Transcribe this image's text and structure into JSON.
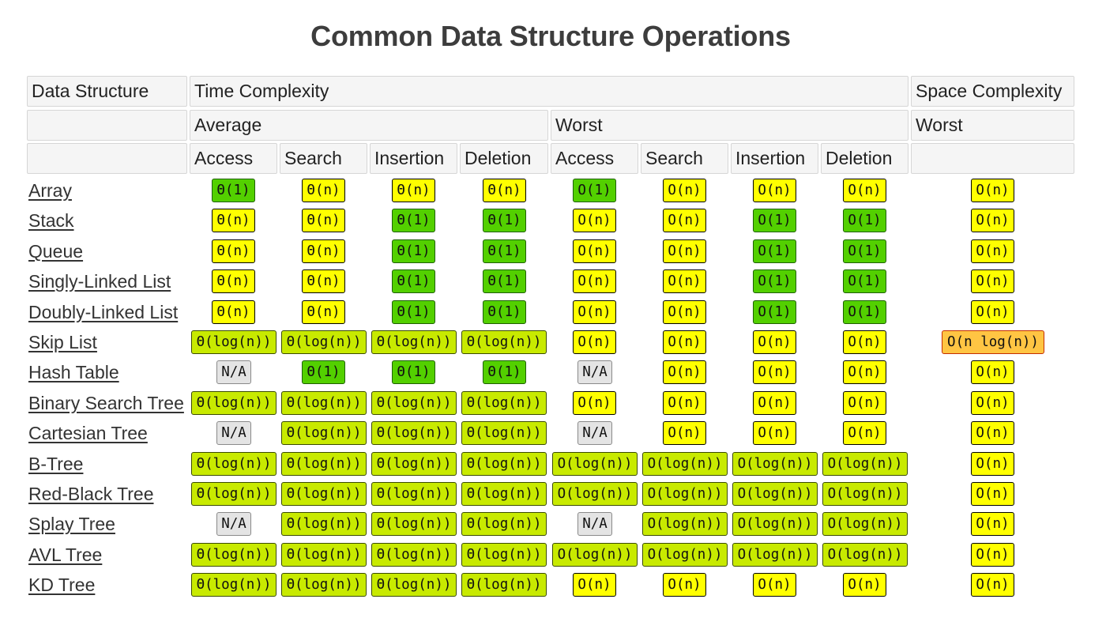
{
  "title": "Common Data Structure Operations",
  "header": {
    "data_structure": "Data Structure",
    "time_complexity": "Time Complexity",
    "space_complexity": "Space Complexity",
    "average": "Average",
    "worst": "Worst",
    "space_worst": "Worst",
    "columns": [
      "Access",
      "Search",
      "Insertion",
      "Deletion",
      "Access",
      "Search",
      "Insertion",
      "Deletion"
    ]
  },
  "colors": {
    "yellow": "#ffff00",
    "green": "#53d000",
    "lime": "#c8ea00",
    "orange": "#ffc543",
    "na": "#e4e4e4"
  },
  "rows": [
    {
      "name": "Array",
      "cells": [
        [
          "Θ(1)",
          "green"
        ],
        [
          "Θ(n)",
          "yellow"
        ],
        [
          "Θ(n)",
          "yellow"
        ],
        [
          "Θ(n)",
          "yellow"
        ],
        [
          "O(1)",
          "green"
        ],
        [
          "O(n)",
          "yellow"
        ],
        [
          "O(n)",
          "yellow"
        ],
        [
          "O(n)",
          "yellow"
        ],
        [
          "O(n)",
          "yellow"
        ]
      ]
    },
    {
      "name": "Stack",
      "cells": [
        [
          "Θ(n)",
          "yellow"
        ],
        [
          "Θ(n)",
          "yellow"
        ],
        [
          "Θ(1)",
          "green"
        ],
        [
          "Θ(1)",
          "green"
        ],
        [
          "O(n)",
          "yellow"
        ],
        [
          "O(n)",
          "yellow"
        ],
        [
          "O(1)",
          "green"
        ],
        [
          "O(1)",
          "green"
        ],
        [
          "O(n)",
          "yellow"
        ]
      ]
    },
    {
      "name": "Queue",
      "cells": [
        [
          "Θ(n)",
          "yellow"
        ],
        [
          "Θ(n)",
          "yellow"
        ],
        [
          "Θ(1)",
          "green"
        ],
        [
          "Θ(1)",
          "green"
        ],
        [
          "O(n)",
          "yellow"
        ],
        [
          "O(n)",
          "yellow"
        ],
        [
          "O(1)",
          "green"
        ],
        [
          "O(1)",
          "green"
        ],
        [
          "O(n)",
          "yellow"
        ]
      ]
    },
    {
      "name": "Singly-Linked List",
      "cells": [
        [
          "Θ(n)",
          "yellow"
        ],
        [
          "Θ(n)",
          "yellow"
        ],
        [
          "Θ(1)",
          "green"
        ],
        [
          "Θ(1)",
          "green"
        ],
        [
          "O(n)",
          "yellow"
        ],
        [
          "O(n)",
          "yellow"
        ],
        [
          "O(1)",
          "green"
        ],
        [
          "O(1)",
          "green"
        ],
        [
          "O(n)",
          "yellow"
        ]
      ]
    },
    {
      "name": "Doubly-Linked List",
      "cells": [
        [
          "Θ(n)",
          "yellow"
        ],
        [
          "Θ(n)",
          "yellow"
        ],
        [
          "Θ(1)",
          "green"
        ],
        [
          "Θ(1)",
          "green"
        ],
        [
          "O(n)",
          "yellow"
        ],
        [
          "O(n)",
          "yellow"
        ],
        [
          "O(1)",
          "green"
        ],
        [
          "O(1)",
          "green"
        ],
        [
          "O(n)",
          "yellow"
        ]
      ]
    },
    {
      "name": "Skip List",
      "cells": [
        [
          "Θ(log(n))",
          "lime"
        ],
        [
          "Θ(log(n))",
          "lime"
        ],
        [
          "Θ(log(n))",
          "lime"
        ],
        [
          "Θ(log(n))",
          "lime"
        ],
        [
          "O(n)",
          "yellow"
        ],
        [
          "O(n)",
          "yellow"
        ],
        [
          "O(n)",
          "yellow"
        ],
        [
          "O(n)",
          "yellow"
        ],
        [
          "O(n log(n))",
          "orange"
        ]
      ]
    },
    {
      "name": "Hash Table",
      "cells": [
        [
          "N/A",
          "na"
        ],
        [
          "Θ(1)",
          "green"
        ],
        [
          "Θ(1)",
          "green"
        ],
        [
          "Θ(1)",
          "green"
        ],
        [
          "N/A",
          "na"
        ],
        [
          "O(n)",
          "yellow"
        ],
        [
          "O(n)",
          "yellow"
        ],
        [
          "O(n)",
          "yellow"
        ],
        [
          "O(n)",
          "yellow"
        ]
      ]
    },
    {
      "name": "Binary Search Tree",
      "cells": [
        [
          "Θ(log(n))",
          "lime"
        ],
        [
          "Θ(log(n))",
          "lime"
        ],
        [
          "Θ(log(n))",
          "lime"
        ],
        [
          "Θ(log(n))",
          "lime"
        ],
        [
          "O(n)",
          "yellow"
        ],
        [
          "O(n)",
          "yellow"
        ],
        [
          "O(n)",
          "yellow"
        ],
        [
          "O(n)",
          "yellow"
        ],
        [
          "O(n)",
          "yellow"
        ]
      ]
    },
    {
      "name": "Cartesian Tree",
      "cells": [
        [
          "N/A",
          "na"
        ],
        [
          "Θ(log(n))",
          "lime"
        ],
        [
          "Θ(log(n))",
          "lime"
        ],
        [
          "Θ(log(n))",
          "lime"
        ],
        [
          "N/A",
          "na"
        ],
        [
          "O(n)",
          "yellow"
        ],
        [
          "O(n)",
          "yellow"
        ],
        [
          "O(n)",
          "yellow"
        ],
        [
          "O(n)",
          "yellow"
        ]
      ]
    },
    {
      "name": "B-Tree",
      "cells": [
        [
          "Θ(log(n))",
          "lime"
        ],
        [
          "Θ(log(n))",
          "lime"
        ],
        [
          "Θ(log(n))",
          "lime"
        ],
        [
          "Θ(log(n))",
          "lime"
        ],
        [
          "O(log(n))",
          "lime"
        ],
        [
          "O(log(n))",
          "lime"
        ],
        [
          "O(log(n))",
          "lime"
        ],
        [
          "O(log(n))",
          "lime"
        ],
        [
          "O(n)",
          "yellow"
        ]
      ]
    },
    {
      "name": "Red-Black Tree",
      "cells": [
        [
          "Θ(log(n))",
          "lime"
        ],
        [
          "Θ(log(n))",
          "lime"
        ],
        [
          "Θ(log(n))",
          "lime"
        ],
        [
          "Θ(log(n))",
          "lime"
        ],
        [
          "O(log(n))",
          "lime"
        ],
        [
          "O(log(n))",
          "lime"
        ],
        [
          "O(log(n))",
          "lime"
        ],
        [
          "O(log(n))",
          "lime"
        ],
        [
          "O(n)",
          "yellow"
        ]
      ]
    },
    {
      "name": "Splay Tree",
      "cells": [
        [
          "N/A",
          "na"
        ],
        [
          "Θ(log(n))",
          "lime"
        ],
        [
          "Θ(log(n))",
          "lime"
        ],
        [
          "Θ(log(n))",
          "lime"
        ],
        [
          "N/A",
          "na"
        ],
        [
          "O(log(n))",
          "lime"
        ],
        [
          "O(log(n))",
          "lime"
        ],
        [
          "O(log(n))",
          "lime"
        ],
        [
          "O(n)",
          "yellow"
        ]
      ]
    },
    {
      "name": "AVL Tree",
      "cells": [
        [
          "Θ(log(n))",
          "lime"
        ],
        [
          "Θ(log(n))",
          "lime"
        ],
        [
          "Θ(log(n))",
          "lime"
        ],
        [
          "Θ(log(n))",
          "lime"
        ],
        [
          "O(log(n))",
          "lime"
        ],
        [
          "O(log(n))",
          "lime"
        ],
        [
          "O(log(n))",
          "lime"
        ],
        [
          "O(log(n))",
          "lime"
        ],
        [
          "O(n)",
          "yellow"
        ]
      ]
    },
    {
      "name": "KD Tree",
      "cells": [
        [
          "Θ(log(n))",
          "lime"
        ],
        [
          "Θ(log(n))",
          "lime"
        ],
        [
          "Θ(log(n))",
          "lime"
        ],
        [
          "Θ(log(n))",
          "lime"
        ],
        [
          "O(n)",
          "yellow"
        ],
        [
          "O(n)",
          "yellow"
        ],
        [
          "O(n)",
          "yellow"
        ],
        [
          "O(n)",
          "yellow"
        ],
        [
          "O(n)",
          "yellow"
        ]
      ]
    }
  ]
}
